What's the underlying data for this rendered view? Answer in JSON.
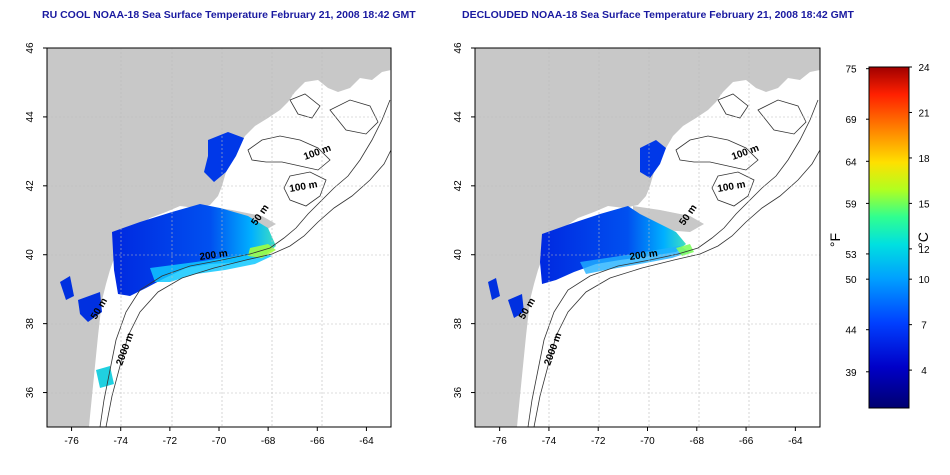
{
  "panels": [
    {
      "id": "ru-cool",
      "title": "RU COOL NOAA-18 Sea Surface Temperature February 21, 2008 18:42 GMT",
      "contour_labels": [
        "100 m",
        "100 m",
        "50 m",
        "200 m",
        "50 m",
        "2000 m"
      ]
    },
    {
      "id": "declouded",
      "title": "DECLOUDED NOAA-18 Sea Surface Temperature February 21, 2008 18:42 GMT",
      "contour_labels": [
        "100 m",
        "100 m",
        "50 m",
        "200 m",
        "50 m",
        "2000 m"
      ]
    }
  ],
  "axes": {
    "lon_ticks": [
      "-76",
      "-74",
      "-72",
      "-70",
      "-68",
      "-66",
      "-64"
    ],
    "lat_ticks": [
      "36",
      "38",
      "40",
      "42",
      "44",
      "46"
    ],
    "lon_range": [
      -77,
      -63
    ],
    "lat_range": [
      35,
      46
    ]
  },
  "colorbar": {
    "fahrenheit_ticks": [
      "75",
      "69",
      "64",
      "59",
      "53",
      "50",
      "44",
      "39"
    ],
    "celsius_ticks": [
      "24",
      "21",
      "18",
      "15",
      "12",
      "10",
      "7",
      "4"
    ],
    "fahrenheit_label": "°F",
    "celsius_label": "°C",
    "colors": [
      "#000080",
      "#0000d0",
      "#0050ff",
      "#00a8ff",
      "#00e8e8",
      "#40ff90",
      "#c0ff20",
      "#ffe000",
      "#ff8000",
      "#ff2000",
      "#b00000"
    ]
  },
  "colors": {
    "land": "#c8c8c8",
    "ocean": "#ffffff",
    "title": "#1a1aa0",
    "contour": "#333333",
    "grid": "#bbbbbb"
  }
}
